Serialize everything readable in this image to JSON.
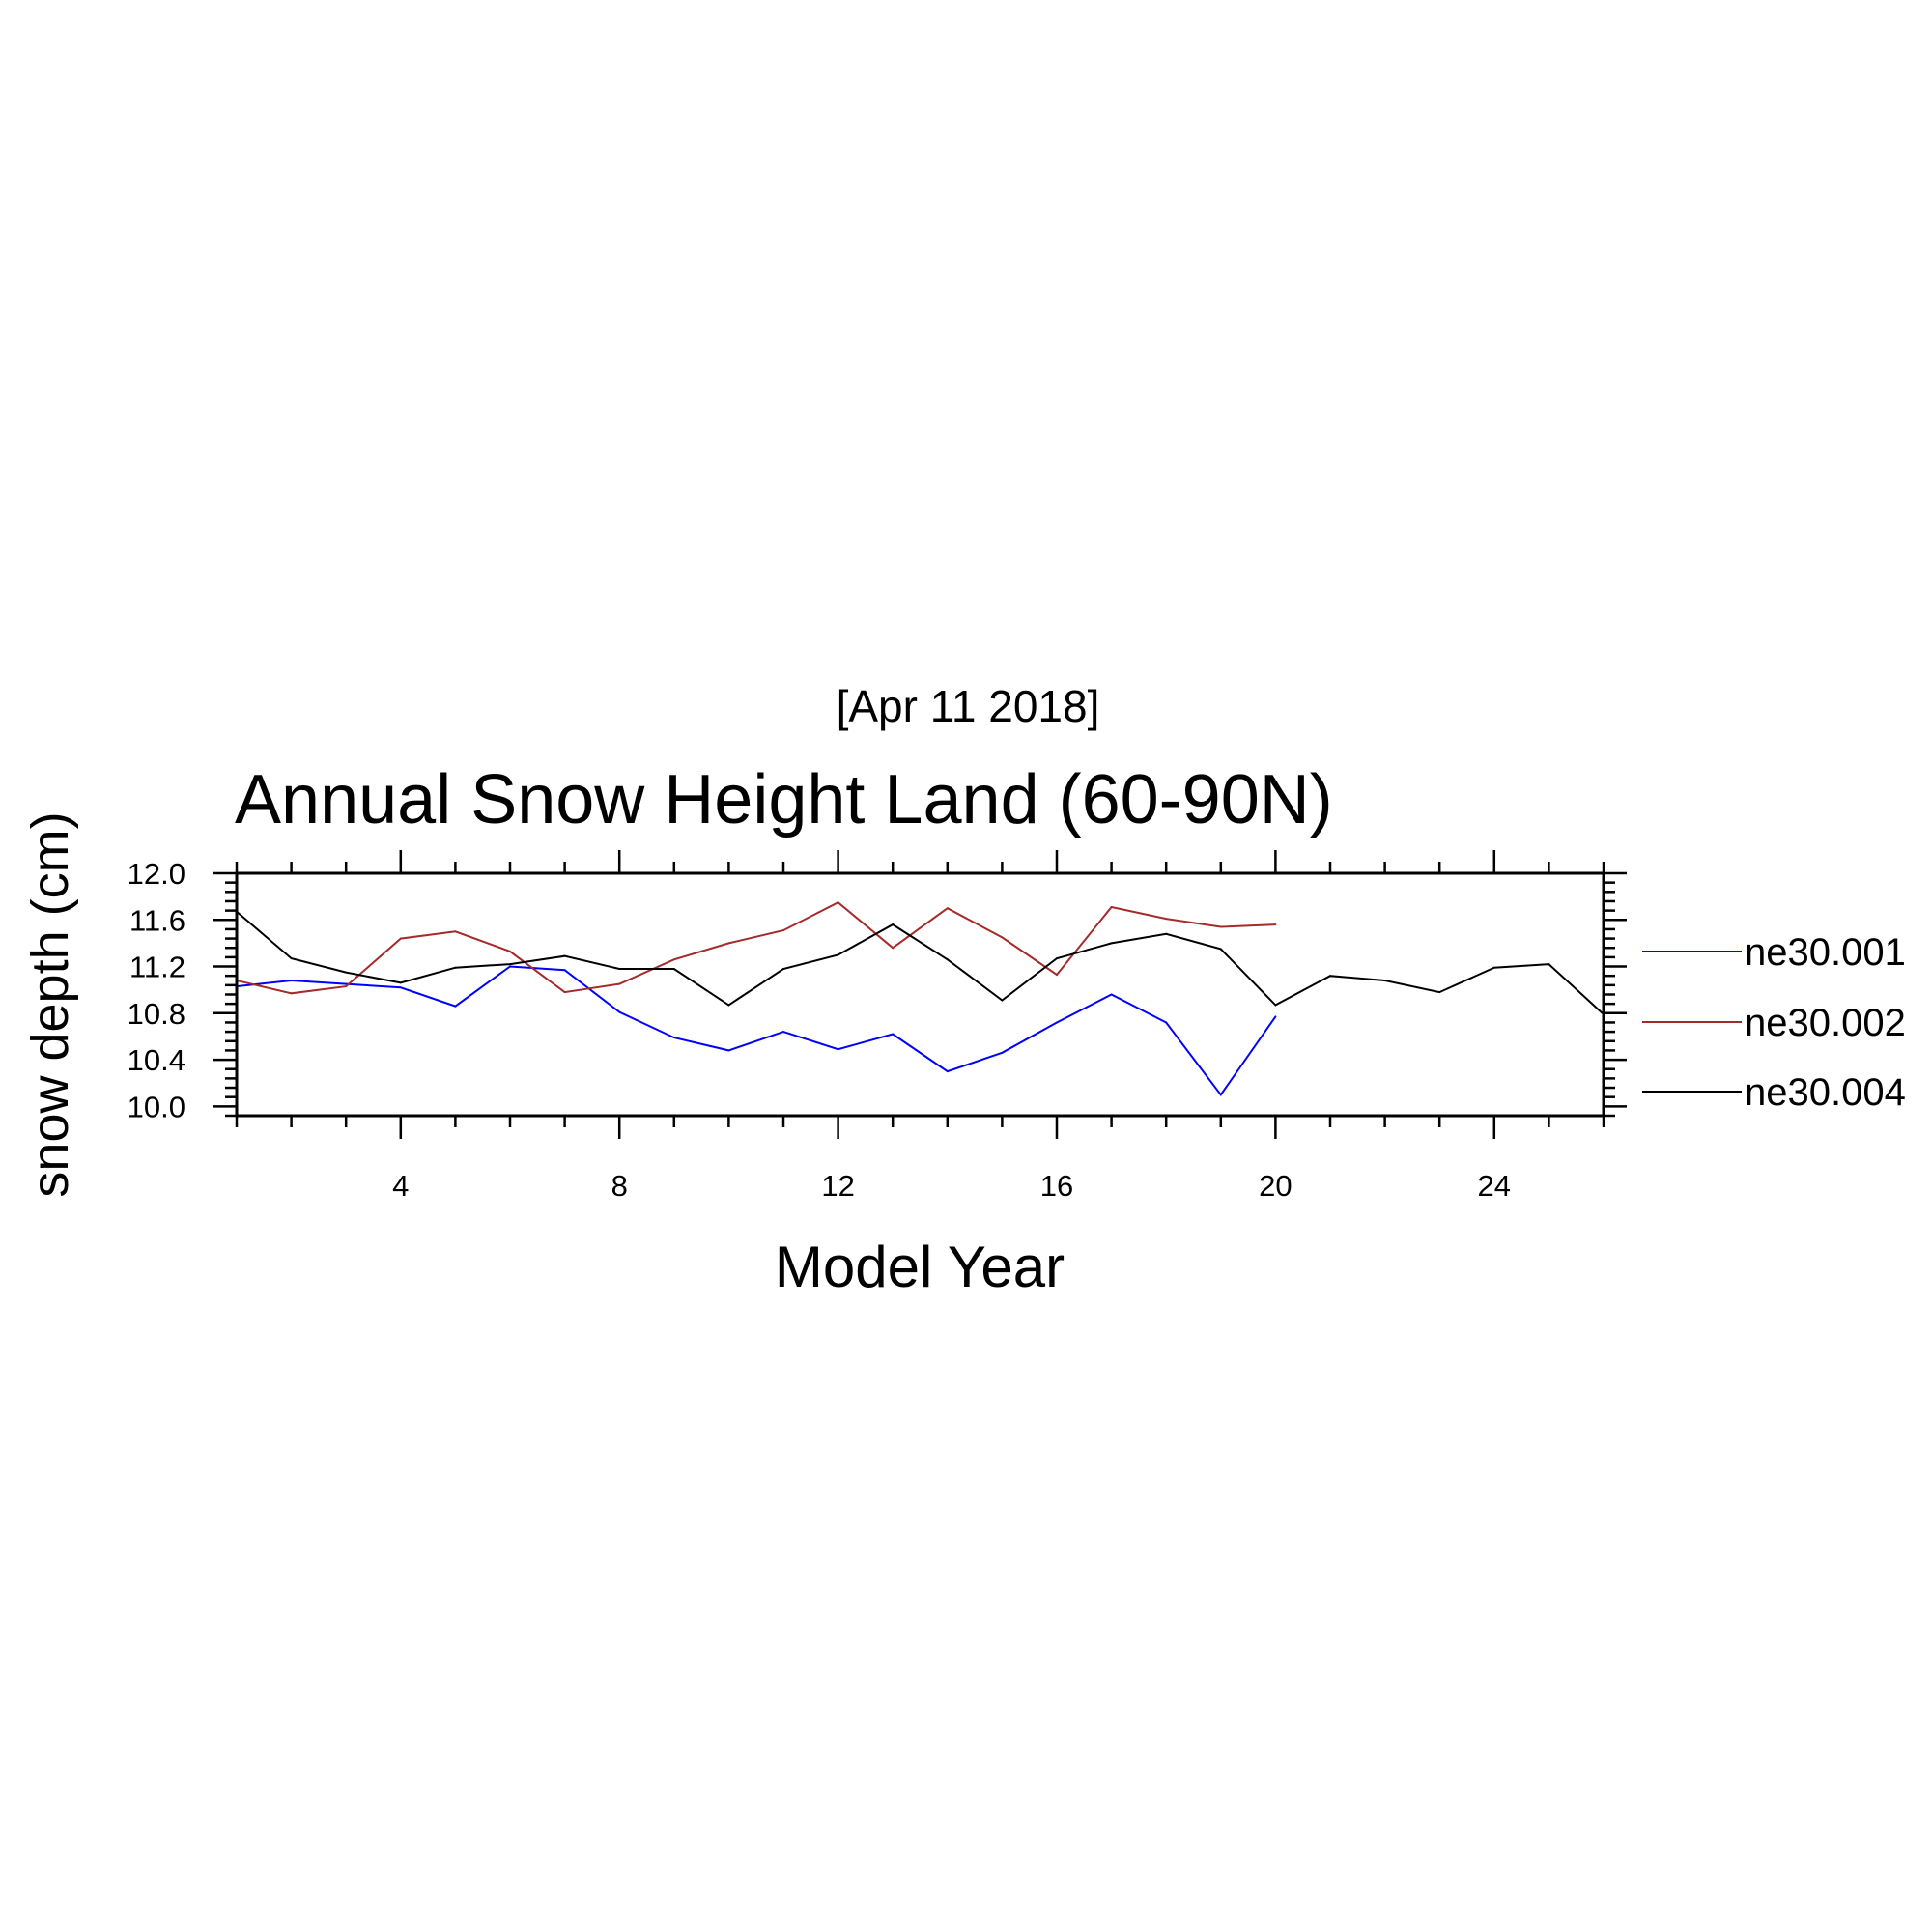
{
  "chart_data": {
    "type": "line",
    "subtitle": "[Apr 11 2018]",
    "title": "Annual Snow Height Land (60-90N)",
    "xlabel": "Model Year",
    "ylabel": "snow depth (cm)",
    "xlim": [
      1,
      26
    ],
    "ylim": [
      9.92,
      12.0
    ],
    "x_ticks": [
      4,
      8,
      12,
      16,
      20,
      24
    ],
    "x_tick_labels": [
      "4",
      "8",
      "12",
      "16",
      "20",
      "24"
    ],
    "y_ticks": [
      10.0,
      10.4,
      10.8,
      11.2,
      11.6,
      12.0
    ],
    "y_tick_labels": [
      "10.0",
      "10.4",
      "10.8",
      "11.2",
      "11.6",
      "12.0"
    ],
    "grid": false,
    "legend_position": "right",
    "series": [
      {
        "name": "ne30.001",
        "color": "#0000ff",
        "x": [
          1,
          2,
          3,
          4,
          5,
          6,
          7,
          8,
          9,
          10,
          11,
          12,
          13,
          14,
          15,
          16,
          17,
          18,
          19,
          20
        ],
        "y": [
          11.03,
          11.08,
          11.05,
          11.02,
          10.86,
          11.2,
          11.17,
          10.81,
          10.59,
          10.48,
          10.64,
          10.49,
          10.62,
          10.3,
          10.46,
          10.72,
          10.96,
          10.72,
          10.1,
          10.77
        ]
      },
      {
        "name": "ne30.002",
        "color": "#a52a2a",
        "x": [
          1,
          2,
          3,
          4,
          5,
          6,
          7,
          8,
          9,
          10,
          11,
          12,
          13,
          14,
          15,
          16,
          17,
          18,
          19,
          20
        ],
        "y": [
          11.08,
          10.97,
          11.03,
          11.44,
          11.5,
          11.33,
          10.98,
          11.05,
          11.26,
          11.4,
          11.51,
          11.75,
          11.36,
          11.7,
          11.45,
          11.13,
          11.71,
          11.61,
          11.54,
          11.56
        ]
      },
      {
        "name": "ne30.004",
        "color": "#000000",
        "x": [
          1,
          2,
          3,
          4,
          5,
          6,
          7,
          8,
          9,
          10,
          11,
          12,
          13,
          14,
          15,
          16,
          17,
          18,
          19,
          20,
          21,
          22,
          23,
          24,
          25,
          26
        ],
        "y": [
          11.67,
          11.27,
          11.15,
          11.06,
          11.19,
          11.22,
          11.29,
          11.18,
          11.18,
          10.87,
          11.18,
          11.3,
          11.56,
          11.26,
          10.91,
          11.27,
          11.4,
          11.48,
          11.35,
          10.87,
          11.12,
          11.08,
          10.98,
          11.19,
          11.22,
          10.79
        ]
      }
    ]
  }
}
